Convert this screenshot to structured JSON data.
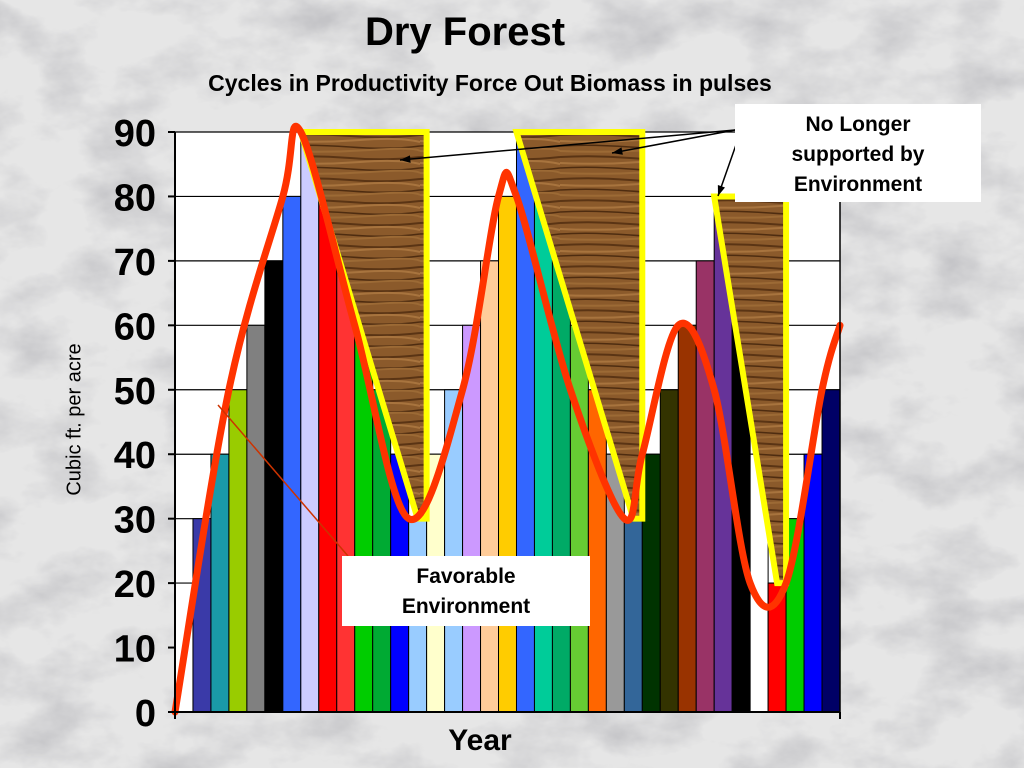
{
  "chart_data": {
    "type": "bar",
    "title": "Dry Forest",
    "subtitle": "Cycles in Productivity Force Out Biomass  in pulses",
    "xlabel": "Year",
    "ylabel": "Cubic ft. per acre",
    "ylim": [
      0,
      90
    ],
    "yticks": [
      0,
      10,
      20,
      30,
      40,
      50,
      60,
      70,
      80,
      90
    ],
    "grid": true,
    "values": [
      20,
      30,
      40,
      50,
      60,
      70,
      80,
      90,
      80,
      70,
      60,
      50,
      40,
      30,
      40,
      50,
      60,
      70,
      80,
      90,
      80,
      70,
      60,
      50,
      40,
      30,
      40,
      50,
      60,
      70,
      80,
      60,
      40,
      20,
      30,
      40,
      50
    ],
    "colors": [
      "#ffffff",
      "#3a3aa8",
      "#1a9aa8",
      "#99cc00",
      "#808080",
      "#000000",
      "#3366ff",
      "#ccccff",
      "#ff0000",
      "#ff3333",
      "#00cc00",
      "#00aa33",
      "#0000ff",
      "#99ccff",
      "#ffffcc",
      "#99ccff",
      "#cc99ff",
      "#ffcc99",
      "#ffcc00",
      "#3366ff",
      "#00cc99",
      "#00aa66",
      "#66cc33",
      "#ff6600",
      "#999999",
      "#336699",
      "#003300",
      "#333300",
      "#993300",
      "#993366",
      "#663399",
      "#000000",
      "#ffffff",
      "#ff0000",
      "#00cc00",
      "#0000ff",
      "#000066"
    ],
    "overlays": [
      {
        "type": "texture-triangle",
        "from_bar": 7,
        "to_bar": 13,
        "top": 90,
        "bottom": 30
      },
      {
        "type": "texture-triangle",
        "from_bar": 19,
        "to_bar": 25,
        "top": 90,
        "bottom": 30
      },
      {
        "type": "texture-triangle",
        "from_bar": 30,
        "to_bar": 33,
        "top": 80,
        "bottom": 20
      }
    ],
    "trend_line": {
      "color": "#ff3300",
      "points": [
        [
          0,
          0
        ],
        [
          3,
          50
        ],
        [
          6,
          80
        ],
        [
          7,
          90
        ],
        [
          10,
          60
        ],
        [
          13,
          30
        ],
        [
          16,
          50
        ],
        [
          18,
          80
        ],
        [
          19,
          80
        ],
        [
          22,
          50
        ],
        [
          25,
          30
        ],
        [
          26,
          40
        ],
        [
          28,
          60
        ],
        [
          30,
          50
        ],
        [
          32,
          20
        ],
        [
          34,
          20
        ],
        [
          36,
          50
        ],
        [
          37,
          60
        ]
      ]
    },
    "annotations": [
      {
        "id": "top",
        "lines": [
          "No Longer",
          "supported by",
          "Environment"
        ]
      },
      {
        "id": "bottom",
        "lines": [
          "Favorable",
          "Environment"
        ]
      }
    ]
  }
}
